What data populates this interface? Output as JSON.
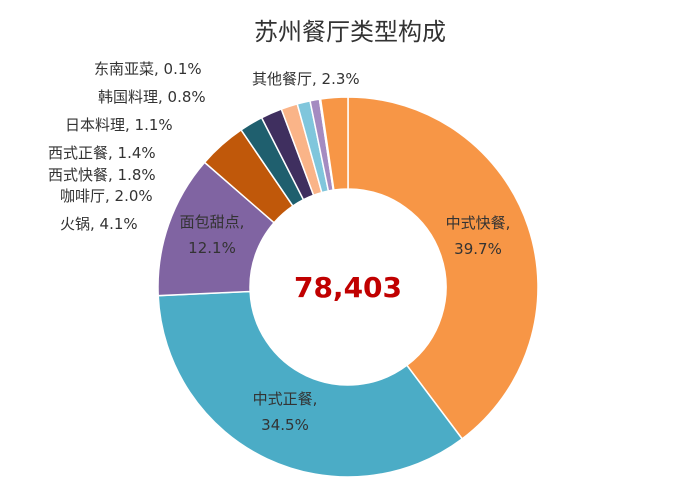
{
  "chart_data": {
    "type": "pie",
    "title": "苏州餐厅类型构成",
    "center_total": "78,403",
    "legend": "none",
    "slices": [
      {
        "name": "中式快餐",
        "value": 39.7,
        "label": "39.7%",
        "color": "#F79646"
      },
      {
        "name": "中式正餐",
        "value": 34.5,
        "label": "34.5%",
        "color": "#4BACC6"
      },
      {
        "name": "面包甜点",
        "value": 12.1,
        "label": "12.1%",
        "color": "#8064A2"
      },
      {
        "name": "火锅",
        "value": 4.1,
        "label": "4.1%",
        "color": "#C0580A"
      },
      {
        "name": "咖啡厅",
        "value": 2.0,
        "label": "2.0%",
        "color": "#1F5F6E"
      },
      {
        "name": "西式快餐",
        "value": 1.8,
        "label": "1.8%",
        "color": "#3F2F5F"
      },
      {
        "name": "西式正餐",
        "value": 1.4,
        "label": "1.4%",
        "color": "#FAB488"
      },
      {
        "name": "日本料理",
        "value": 1.1,
        "label": "1.1%",
        "color": "#80C6DC"
      },
      {
        "name": "韩国料理",
        "value": 0.8,
        "label": "0.8%",
        "color": "#A48BC1"
      },
      {
        "name": "东南亚菜",
        "value": 0.1,
        "label": "0.1%",
        "color": "#E46C0A"
      },
      {
        "name": "其他餐厅",
        "value": 2.3,
        "label": "2.3%",
        "color": "#F79646"
      }
    ],
    "colors": {
      "center_total": "#C00000",
      "title": "#333333",
      "label": "#333333"
    }
  }
}
